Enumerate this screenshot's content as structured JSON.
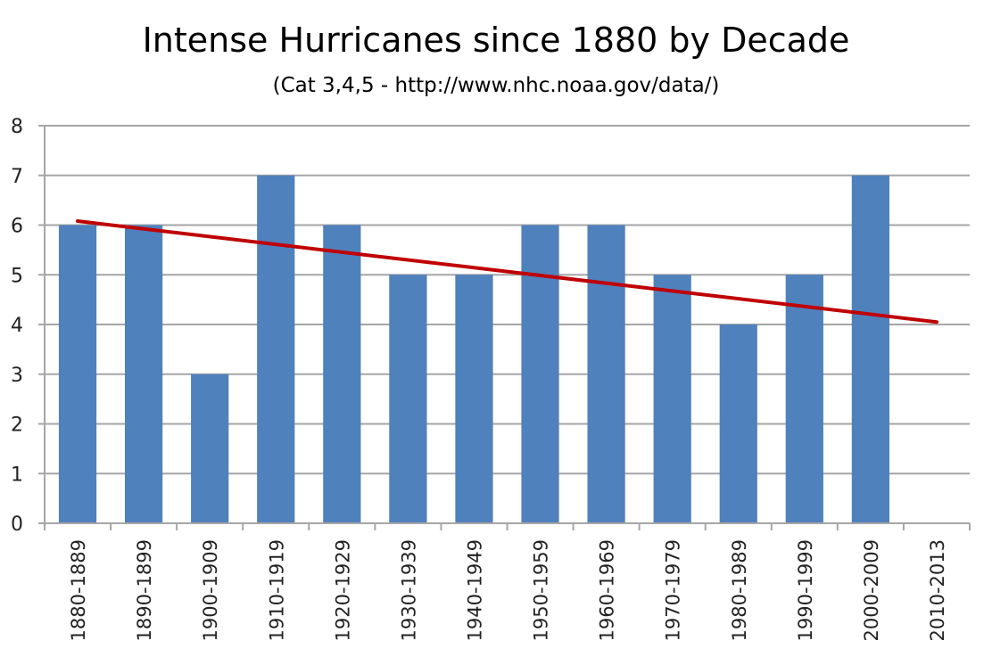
{
  "chart_data": {
    "type": "bar",
    "title": "Intense Hurricanes since 1880 by Decade",
    "subtitle": "(Cat 3,4,5 - http://www.nhc.noaa.gov/data/)",
    "xlabel": "",
    "ylabel": "",
    "categories": [
      "1880-1889",
      "1890-1899",
      "1900-1909",
      "1910-1919",
      "1920-1929",
      "1930-1939",
      "1940-1949",
      "1950-1959",
      "1960-1969",
      "1970-1979",
      "1980-1989",
      "1990-1999",
      "2000-2009",
      "2010-2013"
    ],
    "series": [
      {
        "name": "Intense Hurricanes",
        "values": [
          6,
          6,
          3,
          7,
          6,
          5,
          5,
          6,
          6,
          5,
          4,
          5,
          7,
          0
        ],
        "color": "#4f81bd"
      }
    ],
    "trendline": {
      "type": "linear",
      "start": 6.08,
      "end": 4.05,
      "color": "#c00000"
    },
    "ylim": [
      0,
      8
    ],
    "yticks": [
      0,
      1,
      2,
      3,
      4,
      5,
      6,
      7,
      8
    ],
    "grid": true,
    "legend": "none"
  }
}
